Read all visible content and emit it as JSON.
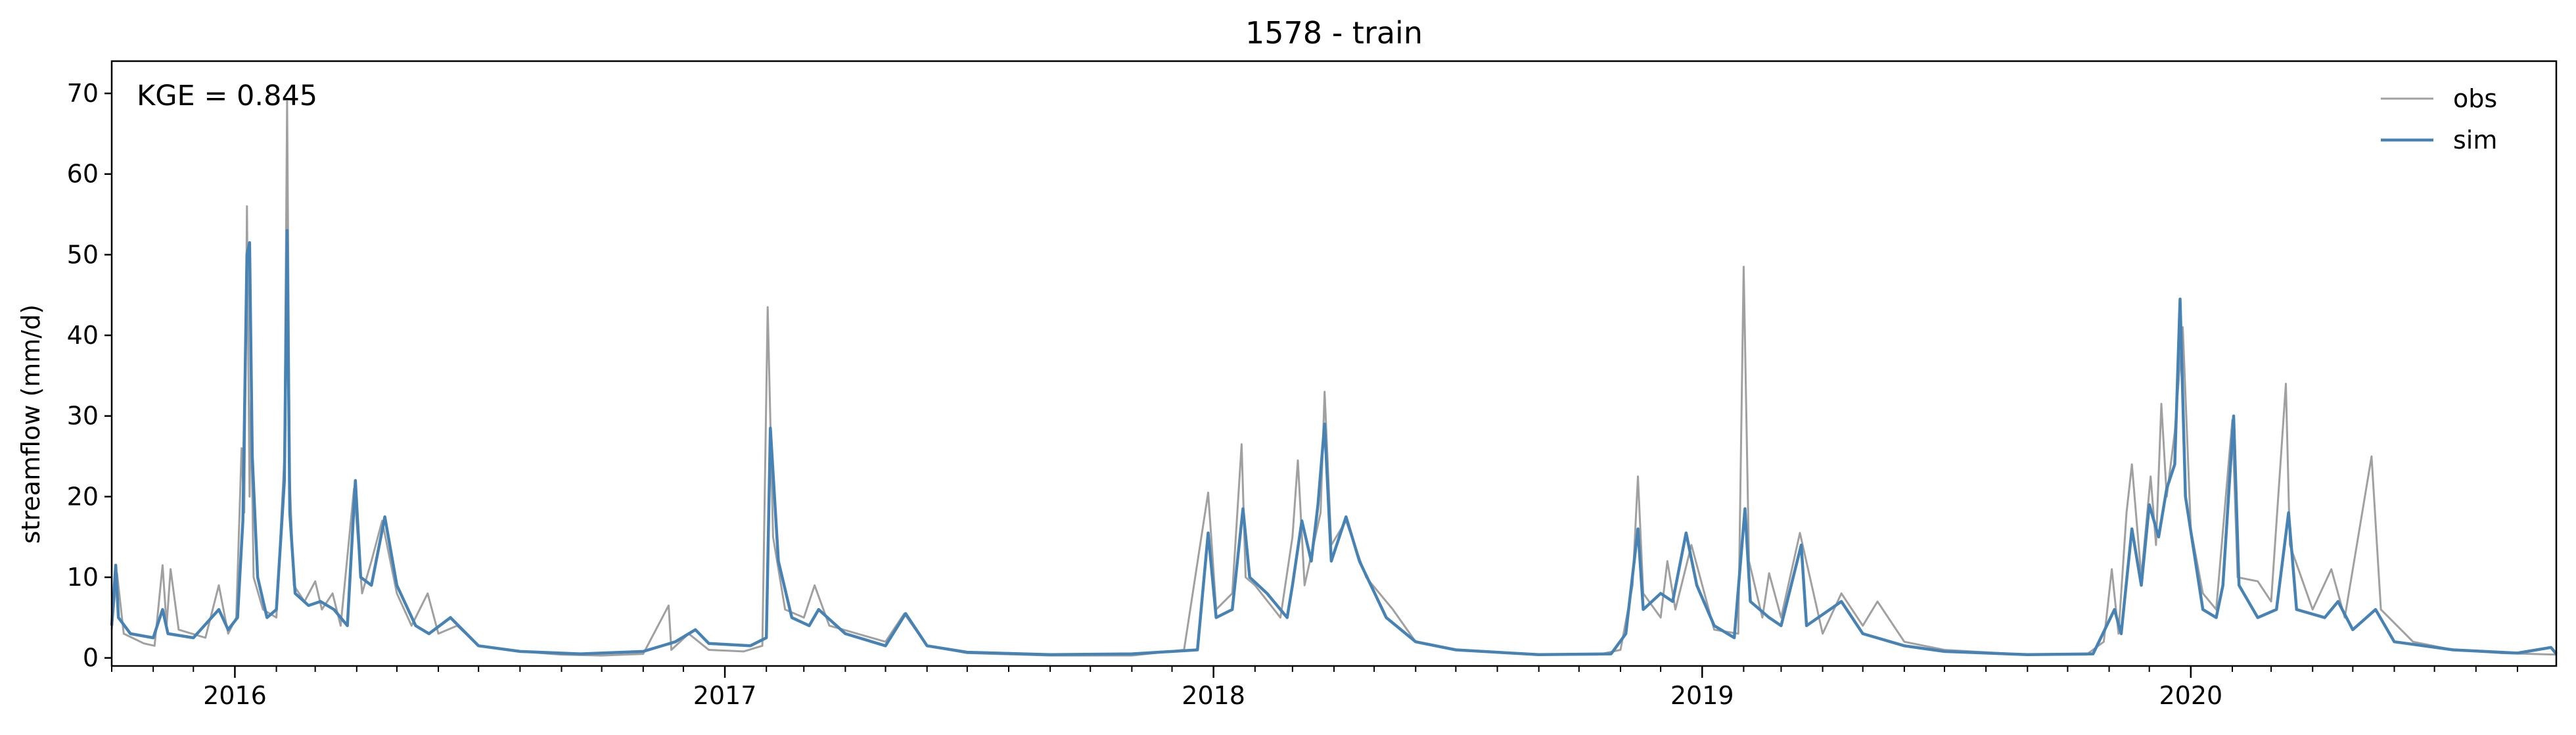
{
  "chart_data": {
    "type": "line",
    "title": "1578 - train",
    "xlabel": "",
    "ylabel": "streamflow (mm/d)",
    "annotation": "KGE = 0.845",
    "xlim": [
      "2015-10-01",
      "2020-09-30"
    ],
    "ylim": [
      -1,
      74
    ],
    "yticks": [
      0,
      10,
      20,
      30,
      40,
      50,
      60,
      70
    ],
    "xticks": [
      {
        "date": "2016-01-01",
        "label": "2016"
      },
      {
        "date": "2017-01-01",
        "label": "2017"
      },
      {
        "date": "2018-01-01",
        "label": "2018"
      },
      {
        "date": "2019-01-01",
        "label": "2019"
      },
      {
        "date": "2020-01-01",
        "label": "2020"
      }
    ],
    "legend_position": "top-right",
    "grid": false,
    "series": [
      {
        "name": "obs",
        "color": "#a0a0a0",
        "points": [
          [
            "2015-10-01",
            3.5
          ],
          [
            "2015-10-05",
            10.5
          ],
          [
            "2015-10-10",
            3
          ],
          [
            "2015-10-25",
            1.8
          ],
          [
            "2015-11-02",
            1.5
          ],
          [
            "2015-11-08",
            11.5
          ],
          [
            "2015-11-11",
            4
          ],
          [
            "2015-11-14",
            11
          ],
          [
            "2015-11-20",
            3.5
          ],
          [
            "2015-12-10",
            2.5
          ],
          [
            "2015-12-20",
            9
          ],
          [
            "2015-12-27",
            3
          ],
          [
            "2016-01-02",
            5
          ],
          [
            "2016-01-06",
            26
          ],
          [
            "2016-01-08",
            18
          ],
          [
            "2016-01-10",
            56
          ],
          [
            "2016-01-12",
            20
          ],
          [
            "2016-01-13",
            32
          ],
          [
            "2016-01-15",
            10
          ],
          [
            "2016-01-22",
            6
          ],
          [
            "2016-02-01",
            5
          ],
          [
            "2016-02-07",
            25
          ],
          [
            "2016-02-09",
            69
          ],
          [
            "2016-02-11",
            22
          ],
          [
            "2016-02-14",
            9
          ],
          [
            "2016-02-22",
            7
          ],
          [
            "2016-03-01",
            9.5
          ],
          [
            "2016-03-06",
            6
          ],
          [
            "2016-03-14",
            8
          ],
          [
            "2016-03-20",
            4
          ],
          [
            "2016-03-30",
            21
          ],
          [
            "2016-04-05",
            8
          ],
          [
            "2016-04-12",
            12
          ],
          [
            "2016-04-20",
            17
          ],
          [
            "2016-05-01",
            8
          ],
          [
            "2016-05-12",
            4
          ],
          [
            "2016-05-24",
            8
          ],
          [
            "2016-06-01",
            3
          ],
          [
            "2016-06-15",
            4
          ],
          [
            "2016-07-01",
            1.5
          ],
          [
            "2016-08-01",
            0.8
          ],
          [
            "2016-09-01",
            0.4
          ],
          [
            "2016-10-01",
            0.3
          ],
          [
            "2016-11-01",
            0.5
          ],
          [
            "2016-11-20",
            6.5
          ],
          [
            "2016-11-22",
            1
          ],
          [
            "2016-12-05",
            3
          ],
          [
            "2016-12-20",
            1
          ],
          [
            "2017-01-15",
            0.8
          ],
          [
            "2017-01-29",
            1.5
          ],
          [
            "2017-02-02",
            43.5
          ],
          [
            "2017-02-06",
            15
          ],
          [
            "2017-02-15",
            6
          ],
          [
            "2017-03-01",
            5
          ],
          [
            "2017-03-09",
            9
          ],
          [
            "2017-03-20",
            4
          ],
          [
            "2017-04-10",
            3
          ],
          [
            "2017-05-01",
            2
          ],
          [
            "2017-05-15",
            5.5
          ],
          [
            "2017-06-01",
            1.5
          ],
          [
            "2017-07-01",
            0.6
          ],
          [
            "2017-09-01",
            0.3
          ],
          [
            "2017-11-01",
            0.3
          ],
          [
            "2017-12-10",
            1
          ],
          [
            "2017-12-28",
            20.5
          ],
          [
            "2018-01-03",
            6
          ],
          [
            "2018-01-15",
            8
          ],
          [
            "2018-01-22",
            26.5
          ],
          [
            "2018-01-25",
            10
          ],
          [
            "2018-02-01",
            9
          ],
          [
            "2018-02-20",
            5
          ],
          [
            "2018-03-01",
            15
          ],
          [
            "2018-03-05",
            24.5
          ],
          [
            "2018-03-10",
            9
          ],
          [
            "2018-03-22",
            18
          ],
          [
            "2018-03-25",
            33
          ],
          [
            "2018-03-30",
            14
          ],
          [
            "2018-04-10",
            17
          ],
          [
            "2018-04-25",
            10
          ],
          [
            "2018-05-15",
            6
          ],
          [
            "2018-06-01",
            2
          ],
          [
            "2018-07-01",
            1
          ],
          [
            "2018-09-01",
            0.4
          ],
          [
            "2018-10-15",
            0.4
          ],
          [
            "2018-11-01",
            1
          ],
          [
            "2018-11-10",
            9
          ],
          [
            "2018-11-14",
            22.5
          ],
          [
            "2018-11-18",
            8
          ],
          [
            "2018-12-01",
            5
          ],
          [
            "2018-12-06",
            12
          ],
          [
            "2018-12-12",
            6
          ],
          [
            "2018-12-24",
            14
          ],
          [
            "2019-01-10",
            3.5
          ],
          [
            "2019-01-28",
            3
          ],
          [
            "2019-02-01",
            48.5
          ],
          [
            "2019-02-05",
            12
          ],
          [
            "2019-02-15",
            5
          ],
          [
            "2019-02-20",
            10.5
          ],
          [
            "2019-03-01",
            5
          ],
          [
            "2019-03-15",
            15.5
          ],
          [
            "2019-04-01",
            3
          ],
          [
            "2019-04-15",
            8
          ],
          [
            "2019-05-01",
            4
          ],
          [
            "2019-05-12",
            7
          ],
          [
            "2019-06-01",
            2
          ],
          [
            "2019-07-01",
            1
          ],
          [
            "2019-09-01",
            0.4
          ],
          [
            "2019-10-15",
            0.4
          ],
          [
            "2019-10-28",
            2
          ],
          [
            "2019-11-03",
            11
          ],
          [
            "2019-11-08",
            3
          ],
          [
            "2019-11-14",
            18
          ],
          [
            "2019-11-18",
            24
          ],
          [
            "2019-11-25",
            10
          ],
          [
            "2019-12-02",
            22.5
          ],
          [
            "2019-12-06",
            14
          ],
          [
            "2019-12-10",
            31.5
          ],
          [
            "2019-12-14",
            20
          ],
          [
            "2019-12-20",
            28
          ],
          [
            "2019-12-26",
            41
          ],
          [
            "2020-01-01",
            16
          ],
          [
            "2020-01-10",
            8
          ],
          [
            "2020-01-20",
            6
          ],
          [
            "2020-02-01",
            29.5
          ],
          [
            "2020-02-05",
            10
          ],
          [
            "2020-02-20",
            9.5
          ],
          [
            "2020-03-01",
            7
          ],
          [
            "2020-03-12",
            34
          ],
          [
            "2020-03-15",
            14
          ],
          [
            "2020-04-01",
            6
          ],
          [
            "2020-04-15",
            11
          ],
          [
            "2020-04-25",
            5
          ],
          [
            "2020-05-15",
            25
          ],
          [
            "2020-05-22",
            6
          ],
          [
            "2020-06-15",
            2
          ],
          [
            "2020-07-15",
            1
          ],
          [
            "2020-08-20",
            0.6
          ],
          [
            "2020-09-30",
            0.4
          ]
        ]
      },
      {
        "name": "sim",
        "color": "#4682b4",
        "points": [
          [
            "2015-10-01",
            4
          ],
          [
            "2015-10-04",
            11.5
          ],
          [
            "2015-10-06",
            5
          ],
          [
            "2015-10-15",
            3
          ],
          [
            "2015-11-01",
            2.5
          ],
          [
            "2015-11-08",
            6
          ],
          [
            "2015-11-12",
            3
          ],
          [
            "2015-12-01",
            2.5
          ],
          [
            "2015-12-20",
            6
          ],
          [
            "2015-12-27",
            3.5
          ],
          [
            "2016-01-03",
            5
          ],
          [
            "2016-01-07",
            17
          ],
          [
            "2016-01-10",
            50
          ],
          [
            "2016-01-12",
            51.5
          ],
          [
            "2016-01-14",
            25
          ],
          [
            "2016-01-18",
            10
          ],
          [
            "2016-01-25",
            5
          ],
          [
            "2016-02-01",
            6
          ],
          [
            "2016-02-07",
            22
          ],
          [
            "2016-02-09",
            53
          ],
          [
            "2016-02-11",
            18
          ],
          [
            "2016-02-15",
            8
          ],
          [
            "2016-02-25",
            6.5
          ],
          [
            "2016-03-05",
            7
          ],
          [
            "2016-03-15",
            6
          ],
          [
            "2016-03-25",
            4
          ],
          [
            "2016-03-31",
            22
          ],
          [
            "2016-04-04",
            10
          ],
          [
            "2016-04-12",
            9
          ],
          [
            "2016-04-22",
            17.5
          ],
          [
            "2016-05-01",
            9
          ],
          [
            "2016-05-15",
            4
          ],
          [
            "2016-05-25",
            3
          ],
          [
            "2016-06-10",
            5
          ],
          [
            "2016-07-01",
            1.5
          ],
          [
            "2016-08-01",
            0.8
          ],
          [
            "2016-09-15",
            0.5
          ],
          [
            "2016-11-01",
            0.8
          ],
          [
            "2016-11-25",
            2
          ],
          [
            "2016-12-10",
            3.5
          ],
          [
            "2016-12-20",
            1.8
          ],
          [
            "2017-01-20",
            1.5
          ],
          [
            "2017-02-01",
            2.5
          ],
          [
            "2017-02-04",
            28.5
          ],
          [
            "2017-02-10",
            12
          ],
          [
            "2017-02-20",
            5
          ],
          [
            "2017-03-05",
            4
          ],
          [
            "2017-03-12",
            6
          ],
          [
            "2017-04-01",
            3
          ],
          [
            "2017-05-01",
            1.5
          ],
          [
            "2017-05-16",
            5.5
          ],
          [
            "2017-06-01",
            1.5
          ],
          [
            "2017-07-01",
            0.7
          ],
          [
            "2017-09-01",
            0.4
          ],
          [
            "2017-11-01",
            0.5
          ],
          [
            "2017-12-20",
            1
          ],
          [
            "2017-12-28",
            15.5
          ],
          [
            "2018-01-03",
            5
          ],
          [
            "2018-01-15",
            6
          ],
          [
            "2018-01-23",
            18.5
          ],
          [
            "2018-01-28",
            10
          ],
          [
            "2018-02-10",
            8
          ],
          [
            "2018-02-25",
            5
          ],
          [
            "2018-03-01",
            9
          ],
          [
            "2018-03-08",
            17
          ],
          [
            "2018-03-15",
            12
          ],
          [
            "2018-03-20",
            19
          ],
          [
            "2018-03-25",
            29
          ],
          [
            "2018-03-30",
            12
          ],
          [
            "2018-04-10",
            17.5
          ],
          [
            "2018-04-20",
            12
          ],
          [
            "2018-05-10",
            5
          ],
          [
            "2018-06-01",
            2
          ],
          [
            "2018-07-01",
            1
          ],
          [
            "2018-09-01",
            0.4
          ],
          [
            "2018-10-25",
            0.5
          ],
          [
            "2018-11-05",
            3
          ],
          [
            "2018-11-14",
            16
          ],
          [
            "2018-11-18",
            6
          ],
          [
            "2018-12-01",
            8
          ],
          [
            "2018-12-10",
            7
          ],
          [
            "2018-12-20",
            15.5
          ],
          [
            "2018-12-28",
            9
          ],
          [
            "2019-01-10",
            4
          ],
          [
            "2019-01-25",
            2.5
          ],
          [
            "2019-02-02",
            18.5
          ],
          [
            "2019-02-06",
            7
          ],
          [
            "2019-02-20",
            5
          ],
          [
            "2019-03-01",
            4
          ],
          [
            "2019-03-16",
            14
          ],
          [
            "2019-03-20",
            4
          ],
          [
            "2019-04-15",
            7
          ],
          [
            "2019-05-01",
            3
          ],
          [
            "2019-06-01",
            1.5
          ],
          [
            "2019-07-01",
            0.8
          ],
          [
            "2019-09-01",
            0.4
          ],
          [
            "2019-10-20",
            0.5
          ],
          [
            "2019-11-05",
            6
          ],
          [
            "2019-11-10",
            3
          ],
          [
            "2019-11-18",
            16
          ],
          [
            "2019-11-25",
            9
          ],
          [
            "2019-12-01",
            19
          ],
          [
            "2019-12-08",
            15
          ],
          [
            "2019-12-14",
            21
          ],
          [
            "2019-12-20",
            24
          ],
          [
            "2019-12-24",
            44.5
          ],
          [
            "2019-12-28",
            20
          ],
          [
            "2020-01-10",
            6
          ],
          [
            "2020-01-20",
            5
          ],
          [
            "2020-01-25",
            9
          ],
          [
            "2020-02-02",
            30
          ],
          [
            "2020-02-06",
            9
          ],
          [
            "2020-02-20",
            5
          ],
          [
            "2020-03-05",
            6
          ],
          [
            "2020-03-14",
            18
          ],
          [
            "2020-03-20",
            6
          ],
          [
            "2020-04-10",
            5
          ],
          [
            "2020-04-20",
            7
          ],
          [
            "2020-05-01",
            3.5
          ],
          [
            "2020-05-18",
            6
          ],
          [
            "2020-06-01",
            2
          ],
          [
            "2020-07-15",
            1
          ],
          [
            "2020-09-01",
            0.6
          ],
          [
            "2020-09-26",
            1.3
          ],
          [
            "2020-09-30",
            0.5
          ]
        ]
      }
    ]
  }
}
